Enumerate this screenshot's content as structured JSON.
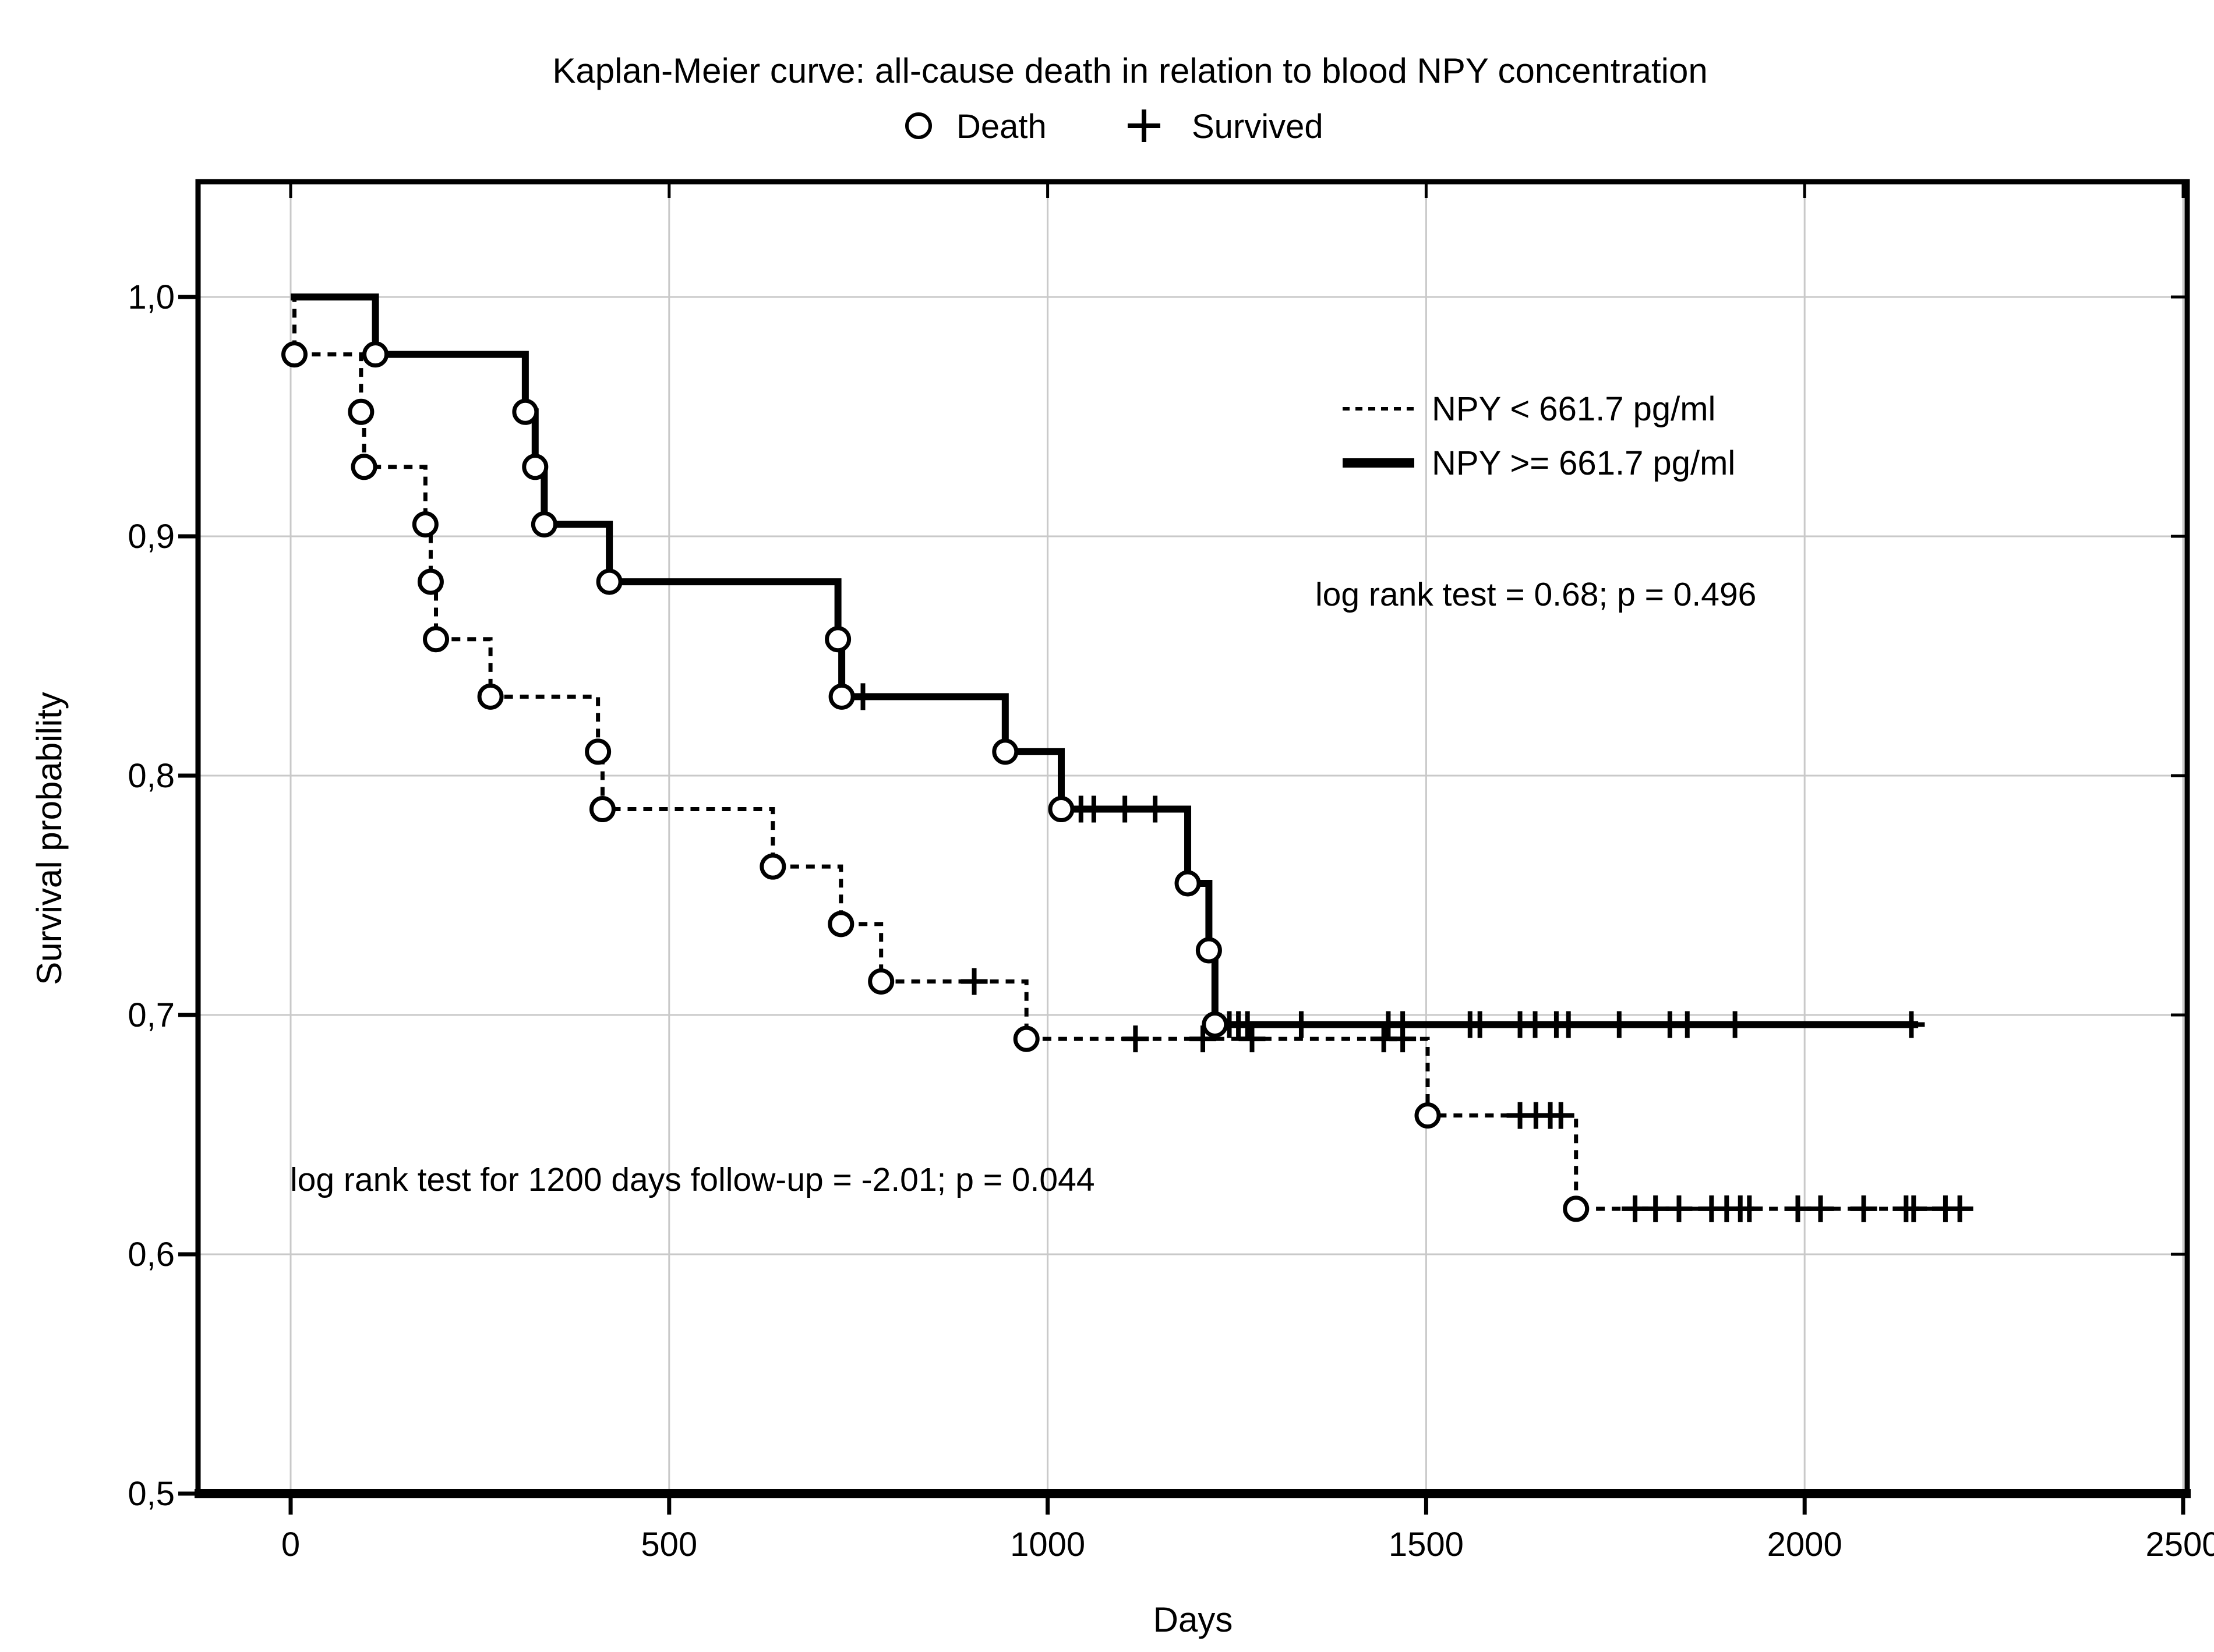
{
  "title": "Kaplan-Meier curve: all-cause death in relation to blood NPY concentration",
  "marker_legend": {
    "death_symbol": "circle",
    "death_label": "Death",
    "survived_symbol": "plus",
    "survived_label": "Survived"
  },
  "axes": {
    "x_label": "Days",
    "y_label": "Survival probability"
  },
  "annotations": {
    "overall": "log rank test = 0.68; p = 0.496",
    "follow_up_1200": "log rank test for 1200 days follow-up = -2.01; p = 0.044"
  },
  "colors": {
    "curve": "#000000",
    "grid": "#c9c9c9",
    "background": "#ffffff"
  },
  "chart_data": {
    "type": "line",
    "subtype": "kaplan-meier-step",
    "title": "Kaplan-Meier curve: all-cause death in relation to blood NPY concentration",
    "xlabel": "Days",
    "ylabel": "Survival probability",
    "xlim": [
      -122,
      2505
    ],
    "ylim": [
      0.5,
      1.048
    ],
    "grid": true,
    "legend_position": "inside-upper-right",
    "x_ticks": [
      0,
      500,
      1000,
      1500,
      2000,
      2500
    ],
    "y_ticks": [
      {
        "value": 1.0,
        "label": "1,0"
      },
      {
        "value": 0.9,
        "label": "0,9"
      },
      {
        "value": 0.8,
        "label": "0,8"
      },
      {
        "value": 0.7,
        "label": "0,7"
      },
      {
        "value": 0.6,
        "label": "0,6"
      },
      {
        "value": 0.5,
        "label": "0,5"
      }
    ],
    "series": [
      {
        "name": "NPY < 661.7 pg/ml",
        "line": "dashed",
        "marker_death": "open-circle",
        "marker_censored": "plus",
        "start": {
          "day": 0,
          "prob": 1.0
        },
        "deaths": [
          [
            5,
            0.976
          ],
          [
            93,
            0.952
          ],
          [
            97,
            0.929
          ],
          [
            178,
            0.905
          ],
          [
            185,
            0.881
          ],
          [
            192,
            0.857
          ],
          [
            264,
            0.833
          ],
          [
            406,
            0.81
          ],
          [
            412,
            0.786
          ],
          [
            637,
            0.762
          ],
          [
            727,
            0.738
          ],
          [
            780,
            0.714
          ],
          [
            972,
            0.69
          ],
          [
            1502,
            0.658
          ],
          [
            1698,
            0.619
          ]
        ],
        "censored": [
          [
            903,
            0.714
          ],
          [
            1116,
            0.69
          ],
          [
            1205,
            0.69
          ],
          [
            1270,
            0.69
          ],
          [
            1444,
            0.69
          ],
          [
            1469,
            0.69
          ],
          [
            1624,
            0.658
          ],
          [
            1645,
            0.658
          ],
          [
            1664,
            0.658
          ],
          [
            1678,
            0.658
          ],
          [
            1776,
            0.619
          ],
          [
            1803,
            0.619
          ],
          [
            1834,
            0.619
          ],
          [
            1877,
            0.619
          ],
          [
            1897,
            0.619
          ],
          [
            1915,
            0.619
          ],
          [
            1927,
            0.619
          ],
          [
            1991,
            0.619
          ],
          [
            2021,
            0.619
          ],
          [
            2078,
            0.619
          ],
          [
            2134,
            0.619
          ],
          [
            2144,
            0.619
          ],
          [
            2186,
            0.619
          ],
          [
            2205,
            0.619
          ]
        ],
        "end_day": 2212
      },
      {
        "name": "NPY >= 661.7 pg/ml",
        "line": "solid",
        "marker_death": "open-circle",
        "marker_censored": "plus",
        "start": {
          "day": 0,
          "prob": 1.0
        },
        "deaths": [
          [
            112,
            0.976
          ],
          [
            310,
            0.952
          ],
          [
            323,
            0.929
          ],
          [
            335,
            0.905
          ],
          [
            421,
            0.881
          ],
          [
            723,
            0.857
          ],
          [
            728,
            0.833
          ],
          [
            944,
            0.81
          ],
          [
            1018,
            0.786
          ],
          [
            1185,
            0.755
          ],
          [
            1213,
            0.727
          ],
          [
            1221,
            0.696
          ]
        ],
        "censored": [
          [
            756,
            0.833
          ],
          [
            1044,
            0.786
          ],
          [
            1061,
            0.786
          ],
          [
            1102,
            0.786
          ],
          [
            1142,
            0.786
          ],
          [
            1240,
            0.696
          ],
          [
            1252,
            0.696
          ],
          [
            1264,
            0.696
          ],
          [
            1335,
            0.696
          ],
          [
            1450,
            0.696
          ],
          [
            1469,
            0.696
          ],
          [
            1558,
            0.696
          ],
          [
            1571,
            0.696
          ],
          [
            1624,
            0.696
          ],
          [
            1644,
            0.696
          ],
          [
            1672,
            0.696
          ],
          [
            1688,
            0.696
          ],
          [
            1755,
            0.696
          ],
          [
            1822,
            0.696
          ],
          [
            1845,
            0.696
          ],
          [
            1908,
            0.696
          ],
          [
            2141,
            0.696
          ]
        ],
        "end_day": 2150
      }
    ],
    "annotations": [
      "log rank test = 0.68; p = 0.496",
      "log rank test for 1200 days follow-up = -2.01; p = 0.044"
    ]
  }
}
